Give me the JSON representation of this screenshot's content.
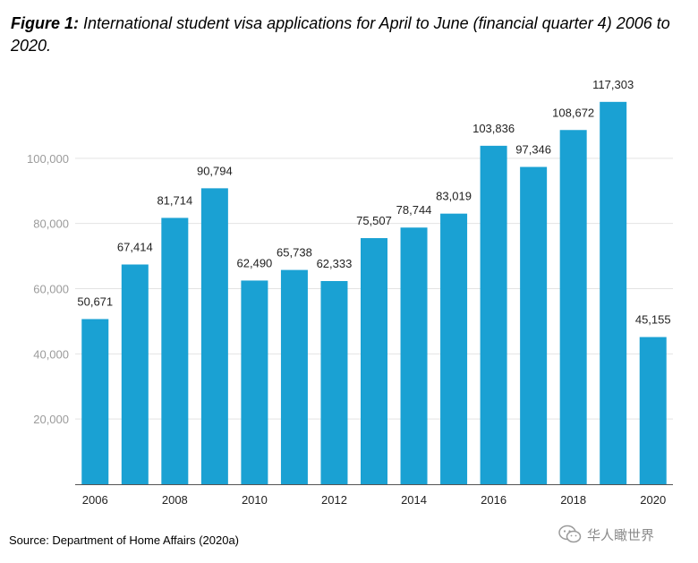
{
  "title": {
    "prefix": "Figure 1:",
    "text": "International student visa applications for April to June (financial quarter 4) 2006 to 2020."
  },
  "source": "Source: Department of Home Affairs (2020a)",
  "watermark": {
    "text": "华人瞰世界",
    "icon": "wechat-icon"
  },
  "colors": {
    "bar": "#1aa1d3",
    "grid": "#e3e3e3",
    "axis_text": "#9b9b9b",
    "label": "#222222"
  },
  "chart_data": {
    "type": "bar",
    "categories": [
      "2006",
      "2007",
      "2008",
      "2009",
      "2010",
      "2011",
      "2012",
      "2013",
      "2014",
      "2015",
      "2016",
      "2017",
      "2018",
      "2019",
      "2020"
    ],
    "values": [
      50671,
      67414,
      81714,
      90794,
      62490,
      65738,
      62333,
      75507,
      78744,
      83019,
      103836,
      97346,
      108672,
      117303,
      45155
    ],
    "value_labels": [
      "50,671",
      "67,414",
      "81,714",
      "90,794",
      "62,490",
      "65,738",
      "62,333",
      "75,507",
      "78,744",
      "83,019",
      "103,836",
      "97,346",
      "108,672",
      "117,303",
      "45,155"
    ],
    "x_tick_labels": [
      "2006",
      "",
      "2008",
      "",
      "2010",
      "",
      "2012",
      "",
      "2014",
      "",
      "2016",
      "",
      "2018",
      "",
      "2020"
    ],
    "y_ticks": [
      20000,
      40000,
      60000,
      80000,
      100000
    ],
    "y_tick_labels": [
      "20,000",
      "40,000",
      "60,000",
      "80,000",
      "100,000"
    ],
    "ylim": [
      0,
      120000
    ],
    "grid": true,
    "legend": false
  }
}
